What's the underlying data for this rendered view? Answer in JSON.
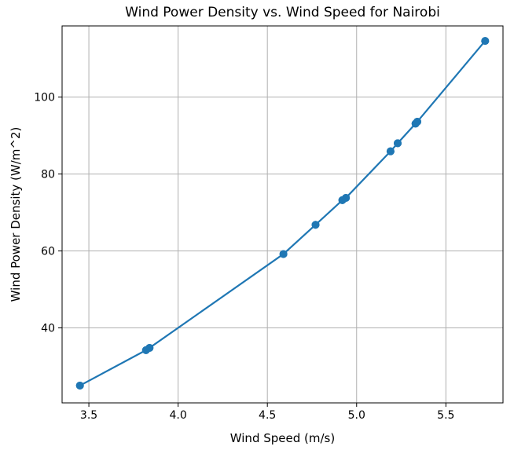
{
  "chart_data": {
    "type": "line",
    "title": "Wind Power Density vs. Wind Speed for Nairobi",
    "xlabel": "Wind Speed (m/s)",
    "ylabel": "Wind Power Density (W/m^2)",
    "xlim": [
      3.35,
      5.82
    ],
    "ylim": [
      20.5,
      118.5
    ],
    "xticks": [
      "3.5",
      "4.0",
      "4.5",
      "5.0",
      "5.5"
    ],
    "yticks": [
      "40",
      "60",
      "80",
      "100"
    ],
    "grid": true,
    "color": "#1f77b4",
    "series": [
      {
        "marker": "circle",
        "x": [
          3.45,
          3.82,
          3.84,
          4.59,
          4.77,
          4.92,
          4.94,
          5.19,
          5.23,
          5.33,
          5.34,
          5.72,
          5.72,
          5.34,
          5.33,
          5.23,
          5.19,
          4.94,
          4.92,
          4.77,
          4.59,
          3.84,
          3.82,
          3.45
        ],
        "y": [
          25.0,
          34.2,
          34.8,
          59.2,
          66.8,
          73.2,
          73.8,
          85.9,
          88.0,
          93.1,
          93.6,
          114.6,
          114.6,
          93.6,
          93.1,
          88.0,
          85.9,
          73.8,
          73.2,
          66.8,
          59.2,
          34.8,
          34.2,
          25.0
        ]
      }
    ]
  }
}
